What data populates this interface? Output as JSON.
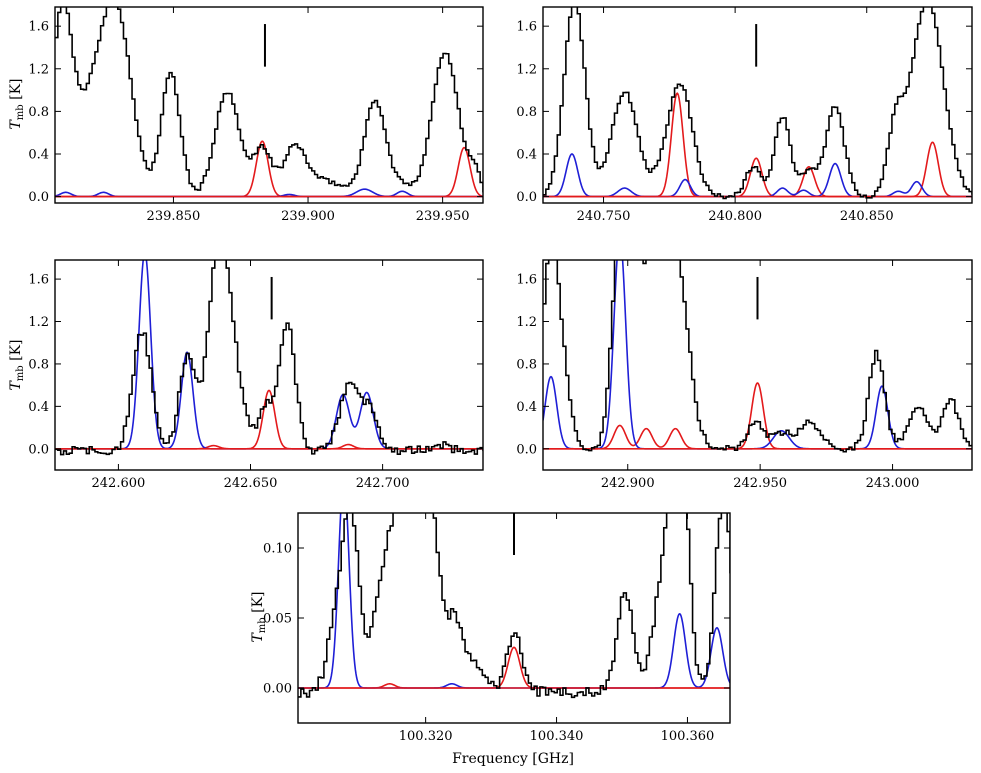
{
  "figure": {
    "ylabel_main": "T",
    "ylabel_sub": "mb",
    "ylabel_unit": "[K]",
    "xlabel": "Frequency [GHz]"
  },
  "colors": {
    "observed": "#000000",
    "model_red": "#e31a1c",
    "model_blue": "#1f1fd6"
  },
  "chart_data": [
    {
      "type": "line",
      "panel": "top-left",
      "xlim": [
        239.806,
        239.965
      ],
      "ylim": [
        -0.06,
        1.78
      ],
      "xticks": [
        239.85,
        239.9,
        239.95
      ],
      "xtick_labels": [
        "239.850",
        "239.900",
        "239.950"
      ],
      "yticks": [
        0.0,
        0.4,
        0.8,
        1.2,
        1.6
      ],
      "ytick_labels": [
        "0.0",
        "0.4",
        "0.8",
        "1.2",
        "1.6"
      ],
      "marker": {
        "x": 239.884,
        "y0": 1.22,
        "y1": 1.62
      },
      "observed_peaks": [
        [
          239.807,
          0.7,
          0.003
        ],
        [
          239.81,
          1.3,
          0.0035
        ],
        [
          239.818,
          0.5,
          0.004
        ],
        [
          239.828,
          1.85,
          0.006
        ],
        [
          239.849,
          1.15,
          0.0035
        ],
        [
          239.87,
          0.98,
          0.0045
        ],
        [
          239.883,
          0.45,
          0.0035
        ],
        [
          239.895,
          0.42,
          0.004
        ],
        [
          239.905,
          0.15,
          0.008
        ],
        [
          239.925,
          0.9,
          0.004
        ],
        [
          239.935,
          0.1,
          0.003
        ],
        [
          239.951,
          1.35,
          0.005
        ],
        [
          239.962,
          0.2,
          0.002
        ]
      ],
      "observed_baseline": 0.0,
      "observed_noise": 0.02,
      "series": [
        {
          "name": "red",
          "peaks": [
            [
              239.883,
              0.52,
              0.0022
            ],
            [
              239.958,
              0.46,
              0.0022
            ]
          ]
        },
        {
          "name": "blue",
          "peaks": [
            [
              239.81,
              0.04,
              0.002
            ],
            [
              239.824,
              0.04,
              0.002
            ],
            [
              239.893,
              0.02,
              0.002
            ],
            [
              239.921,
              0.07,
              0.003
            ],
            [
              239.935,
              0.05,
              0.002
            ]
          ]
        }
      ]
    },
    {
      "type": "line",
      "panel": "top-right",
      "xlim": [
        240.727,
        240.89
      ],
      "ylim": [
        -0.06,
        1.78
      ],
      "xticks": [
        240.75,
        240.8,
        240.85
      ],
      "xtick_labels": [
        "240.750",
        "240.800",
        "240.850"
      ],
      "yticks": [
        0.0,
        0.4,
        0.8,
        1.2,
        1.6
      ],
      "ytick_labels": [
        "0.0",
        "0.4",
        "0.8",
        "1.2",
        "1.6"
      ],
      "marker": {
        "x": 240.808,
        "y0": 1.22,
        "y1": 1.62
      },
      "observed_peaks": [
        [
          240.739,
          1.85,
          0.004
        ],
        [
          240.758,
          0.98,
          0.005
        ],
        [
          240.778,
          0.8,
          0.005
        ],
        [
          240.781,
          0.3,
          0.004
        ],
        [
          240.807,
          0.28,
          0.003
        ],
        [
          240.818,
          0.75,
          0.003
        ],
        [
          240.828,
          0.24,
          0.003
        ],
        [
          240.838,
          0.85,
          0.0035
        ],
        [
          240.861,
          0.6,
          0.003
        ],
        [
          240.873,
          1.85,
          0.006
        ]
      ],
      "observed_baseline": 0.0,
      "observed_noise": 0.02,
      "series": [
        {
          "name": "red",
          "peaks": [
            [
              240.778,
              0.97,
              0.0022
            ],
            [
              240.808,
              0.36,
              0.0022
            ],
            [
              240.828,
              0.28,
              0.0022
            ],
            [
              240.875,
              0.51,
              0.0022
            ]
          ]
        },
        {
          "name": "blue",
          "peaks": [
            [
              240.738,
              0.4,
              0.0022
            ],
            [
              240.758,
              0.08,
              0.0025
            ],
            [
              240.781,
              0.16,
              0.002
            ],
            [
              240.818,
              0.08,
              0.002
            ],
            [
              240.826,
              0.06,
              0.002
            ],
            [
              240.838,
              0.31,
              0.0022
            ],
            [
              240.862,
              0.05,
              0.002
            ],
            [
              240.869,
              0.14,
              0.002
            ]
          ]
        }
      ]
    },
    {
      "type": "line",
      "panel": "middle-left",
      "xlim": [
        242.576,
        242.738
      ],
      "ylim": [
        -0.2,
        1.78
      ],
      "xticks": [
        242.6,
        242.65,
        242.7
      ],
      "xtick_labels": [
        "242.600",
        "242.650",
        "242.700"
      ],
      "yticks": [
        0.0,
        0.4,
        0.8,
        1.2,
        1.6
      ],
      "ytick_labels": [
        "0.0",
        "0.4",
        "0.8",
        "1.2",
        "1.6"
      ],
      "marker": {
        "x": 242.658,
        "y0": 1.22,
        "y1": 1.62
      },
      "observed_peaks": [
        [
          242.609,
          1.12,
          0.0035
        ],
        [
          242.626,
          0.88,
          0.003
        ],
        [
          242.638,
          1.9,
          0.004
        ],
        [
          242.644,
          0.5,
          0.004
        ],
        [
          242.656,
          0.42,
          0.003
        ],
        [
          242.664,
          1.2,
          0.003
        ],
        [
          242.688,
          0.66,
          0.004
        ],
        [
          242.696,
          0.3,
          0.003
        ],
        [
          242.722,
          0.05,
          0.004
        ]
      ],
      "observed_baseline": -0.02,
      "observed_noise": 0.04,
      "series": [
        {
          "name": "red",
          "peaks": [
            [
              242.636,
              0.03,
              0.002
            ],
            [
              242.657,
              0.55,
              0.0022
            ],
            [
              242.687,
              0.04,
              0.002
            ]
          ]
        },
        {
          "name": "blue",
          "peaks": [
            [
              242.61,
              1.85,
              0.0022
            ],
            [
              242.626,
              0.91,
              0.0022
            ],
            [
              242.685,
              0.51,
              0.0025
            ],
            [
              242.694,
              0.53,
              0.0025
            ]
          ]
        }
      ]
    },
    {
      "type": "line",
      "panel": "middle-right",
      "xlim": [
        242.868,
        243.03
      ],
      "ylim": [
        -0.2,
        1.78
      ],
      "xticks": [
        242.9,
        242.95,
        243.0
      ],
      "xtick_labels": [
        "242.900",
        "242.950",
        "243.000"
      ],
      "yticks": [
        0.0,
        0.4,
        0.8,
        1.2,
        1.6
      ],
      "ytick_labels": [
        "0.0",
        "0.4",
        "0.8",
        "1.2",
        "1.6"
      ],
      "marker": {
        "x": 242.949,
        "y0": 1.22,
        "y1": 1.62
      },
      "observed_peaks": [
        [
          242.871,
          1.9,
          0.003
        ],
        [
          242.876,
          0.5,
          0.003
        ],
        [
          242.897,
          1.9,
          0.003
        ],
        [
          242.903,
          1.0,
          0.003
        ],
        [
          242.912,
          1.9,
          0.006
        ],
        [
          242.92,
          0.9,
          0.004
        ],
        [
          242.948,
          0.24,
          0.003
        ],
        [
          242.958,
          0.15,
          0.004
        ],
        [
          242.969,
          0.25,
          0.004
        ],
        [
          242.994,
          0.9,
          0.003
        ],
        [
          243.01,
          0.38,
          0.004
        ],
        [
          243.022,
          0.46,
          0.003
        ]
      ],
      "observed_baseline": 0.0,
      "observed_noise": 0.03,
      "series": [
        {
          "name": "red",
          "peaks": [
            [
              242.897,
              0.22,
              0.0022
            ],
            [
              242.907,
              0.19,
              0.0022
            ],
            [
              242.918,
              0.19,
              0.0022
            ],
            [
              242.949,
              0.62,
              0.0022
            ]
          ]
        },
        {
          "name": "blue",
          "peaks": [
            [
              242.871,
              0.68,
              0.0022
            ],
            [
              242.897,
              2.0,
              0.0022
            ],
            [
              242.958,
              0.17,
              0.003
            ],
            [
              242.996,
              0.59,
              0.0022
            ]
          ]
        }
      ]
    },
    {
      "type": "line",
      "panel": "bottom-center",
      "xlim": [
        100.3005,
        100.3665
      ],
      "ylim": [
        -0.025,
        0.125
      ],
      "xticks": [
        100.32,
        100.34,
        100.36
      ],
      "xtick_labels": [
        "100.320",
        "100.340",
        "100.360"
      ],
      "yticks": [
        0.0,
        0.05,
        0.1
      ],
      "ytick_labels": [
        "0.00",
        "0.05",
        "0.10"
      ],
      "marker": {
        "x": 100.3335,
        "y0": 0.095,
        "y1": 0.128
      },
      "observed_peaks": [
        [
          100.306,
          0.04,
          0.0012
        ],
        [
          100.3085,
          0.13,
          0.0013
        ],
        [
          100.3125,
          0.043,
          0.0012
        ],
        [
          100.3145,
          0.055,
          0.0012
        ],
        [
          100.317,
          0.13,
          0.0018
        ],
        [
          100.3205,
          0.14,
          0.0015
        ],
        [
          100.3245,
          0.05,
          0.0012
        ],
        [
          100.3275,
          0.02,
          0.0015
        ],
        [
          100.3335,
          0.043,
          0.0011
        ],
        [
          100.3505,
          0.07,
          0.0012
        ],
        [
          100.357,
          0.1,
          0.0018
        ],
        [
          100.359,
          0.14,
          0.0012
        ],
        [
          100.3655,
          0.14,
          0.0012
        ]
      ],
      "observed_baseline": -0.003,
      "observed_noise": 0.004,
      "series": [
        {
          "name": "red",
          "peaks": [
            [
              100.3145,
              0.003,
              0.0008
            ],
            [
              100.3335,
              0.029,
              0.0009
            ]
          ]
        },
        {
          "name": "blue",
          "peaks": [
            [
              100.3075,
              0.15,
              0.0008
            ],
            [
              100.324,
              0.003,
              0.0008
            ],
            [
              100.3588,
              0.053,
              0.0009
            ],
            [
              100.3645,
              0.043,
              0.0009
            ]
          ]
        }
      ]
    }
  ]
}
